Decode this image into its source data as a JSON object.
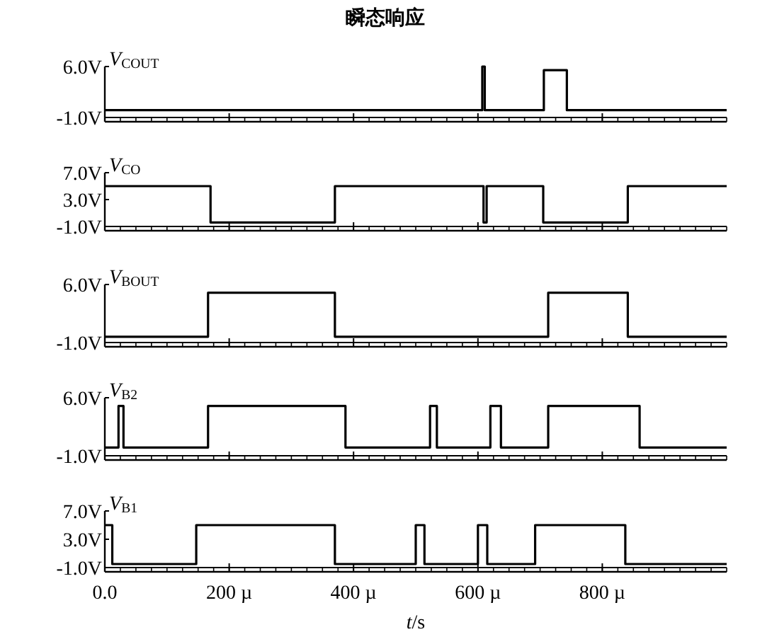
{
  "chart_data": [
    {
      "type": "step",
      "title": "瞬态响应",
      "ylabel": "V$_{COUT}$",
      "xlim": [
        0,
        1000
      ],
      "xticks": [
        0,
        200,
        400,
        600,
        800
      ],
      "ylim": [
        -1,
        6
      ],
      "yticks": [
        {
          "value": 6,
          "label": "6.0V"
        },
        {
          "value": -1,
          "label": "-1.0V"
        }
      ],
      "tick_labels": "y",
      "series": [
        {
          "color": "#000000",
          "x": [
            0,
            607,
            611,
            706,
            743,
            1000
          ],
          "values": [
            0,
            6,
            0,
            5.5,
            0,
            0
          ]
        }
      ]
    },
    {
      "type": "step",
      "ylabel": "V$_{CO}$",
      "xlim": [
        0,
        1000
      ],
      "xticks": [
        0,
        200,
        400,
        600,
        800
      ],
      "ylim": [
        -1,
        7
      ],
      "yticks": [
        {
          "value": 7,
          "label": "7.0V"
        },
        {
          "value": 3,
          "label": "3.0V"
        },
        {
          "value": -1,
          "label": "-1.0V"
        }
      ],
      "tick_labels": "y",
      "series": [
        {
          "color": "#000000",
          "x": [
            0,
            170,
            370,
            609,
            614,
            705,
            841,
            1000
          ],
          "values": [
            5,
            -0.4,
            5,
            -0.4,
            5,
            -0.4,
            5,
            5
          ]
        }
      ]
    },
    {
      "type": "step",
      "ylabel": "V$_{BOUT}$",
      "xlim": [
        0,
        1000
      ],
      "xticks": [
        0,
        200,
        400,
        600,
        800
      ],
      "ylim": [
        -1,
        6
      ],
      "yticks": [
        {
          "value": 6,
          "label": "6.0V"
        },
        {
          "value": -1,
          "label": "-1.0V"
        }
      ],
      "tick_labels": "y",
      "series": [
        {
          "color": "#000000",
          "x": [
            0,
            166,
            370,
            713,
            841,
            1000
          ],
          "values": [
            -0.3,
            5,
            -0.3,
            5,
            -0.3,
            -0.3
          ]
        }
      ]
    },
    {
      "type": "step",
      "ylabel": "V$_{B2}$",
      "xlim": [
        0,
        1000
      ],
      "xticks": [
        0,
        200,
        400,
        600,
        800
      ],
      "ylim": [
        -1,
        6
      ],
      "yticks": [
        {
          "value": 6,
          "label": "6.0V"
        },
        {
          "value": -1,
          "label": "-1.0V"
        }
      ],
      "tick_labels": "y",
      "series": [
        {
          "color": "#000000",
          "x": [
            0,
            22,
            30,
            166,
            387,
            523,
            534,
            620,
            637,
            713,
            860,
            1000
          ],
          "values": [
            0,
            5,
            0,
            5,
            0,
            5,
            0,
            5,
            0,
            5,
            0,
            0
          ]
        }
      ]
    },
    {
      "type": "step",
      "ylabel": "V$_{B1}$",
      "xlabel": "t/s",
      "xlim": [
        0,
        1000
      ],
      "xticks": [
        {
          "value": 0,
          "label": "0.0"
        },
        {
          "value": 200,
          "label": "200 µ"
        },
        {
          "value": 400,
          "label": "400 µ"
        },
        {
          "value": 600,
          "label": "600 µ"
        },
        {
          "value": 800,
          "label": "800 µ"
        }
      ],
      "ylim": [
        -1,
        7
      ],
      "yticks": [
        {
          "value": 7,
          "label": "7.0V"
        },
        {
          "value": 3,
          "label": "3.0V"
        },
        {
          "value": -1,
          "label": "-1.0V"
        }
      ],
      "series": [
        {
          "color": "#000000",
          "x": [
            0,
            12,
            147,
            370,
            500,
            514,
            600,
            615,
            692,
            837,
            1000
          ],
          "values": [
            5,
            -0.5,
            5,
            -0.5,
            5,
            -0.5,
            5,
            -0.5,
            5,
            -0.5,
            -0.5
          ]
        }
      ]
    }
  ]
}
